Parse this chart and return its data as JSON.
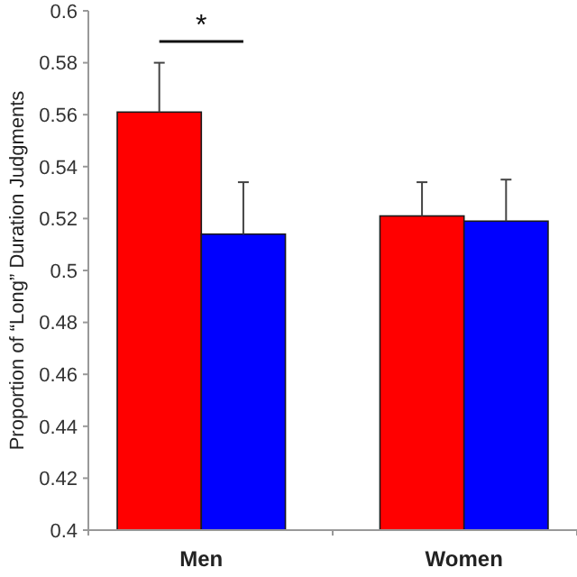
{
  "chart_data": {
    "type": "bar",
    "ylabel": "Proportion of “Long” Duration Judgments",
    "categories": [
      "Men",
      "Women"
    ],
    "series": [
      {
        "color": "#ff0000",
        "values": [
          0.561,
          0.521
        ],
        "errors": [
          [
            0.561,
            0.58
          ],
          [
            0.521,
            0.534
          ]
        ]
      },
      {
        "color": "#0000ff",
        "values": [
          0.514,
          0.519
        ],
        "errors": [
          [
            0.514,
            0.534
          ],
          [
            0.519,
            0.535
          ]
        ]
      }
    ],
    "ylim": [
      0.4,
      0.6
    ],
    "yticks": [
      0.4,
      0.42,
      0.44,
      0.46,
      0.48,
      0.5,
      0.52,
      0.54,
      0.56,
      0.58,
      0.6
    ],
    "grid": false,
    "annotations": [
      "*"
    ]
  }
}
